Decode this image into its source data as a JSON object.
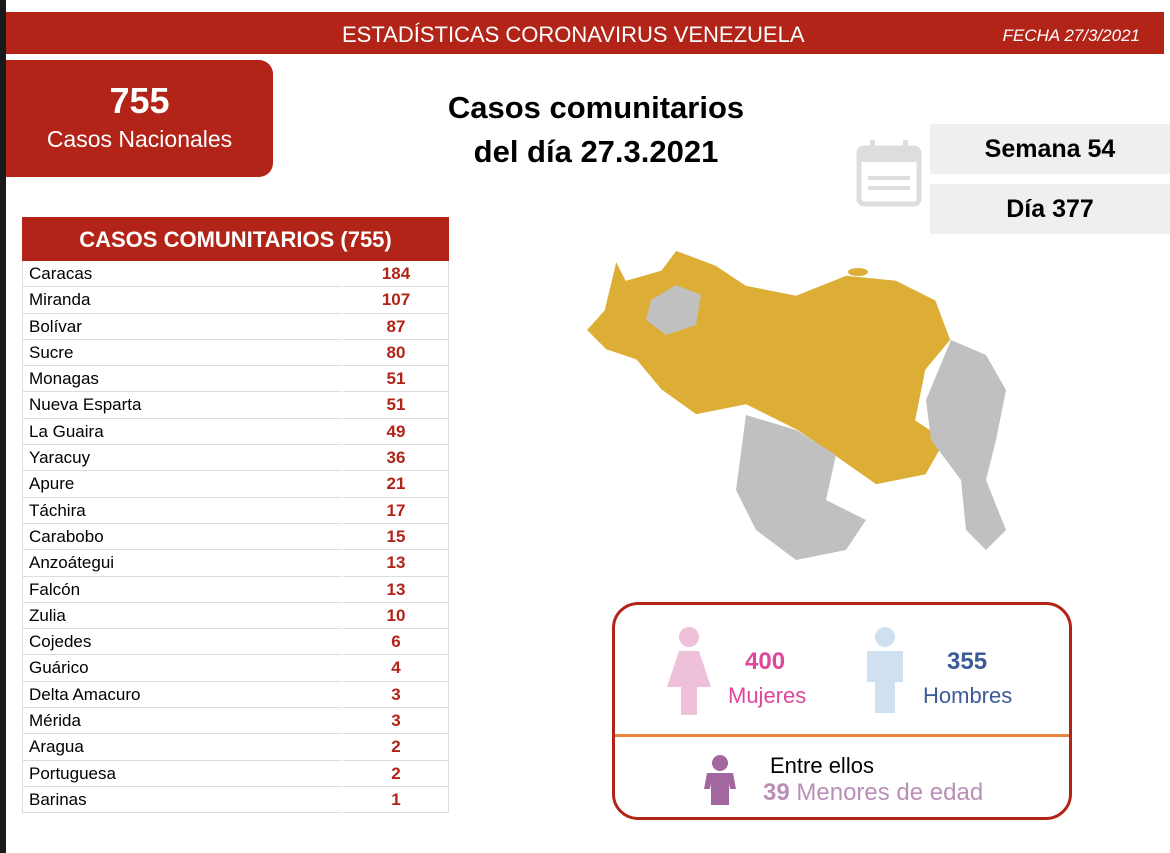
{
  "header": {
    "title": "ESTADÍSTICAS CORONAVIRUS VENEZUELA",
    "fecha": "FECHA 27/3/2021"
  },
  "national": {
    "count": "755",
    "label": "Casos Nacionales"
  },
  "main_title": {
    "line1": "Casos comunitarios",
    "line2": "del día 27.3.2021"
  },
  "semana": "Semana 54",
  "dia": "Día 377",
  "table": {
    "header": "CASOS COMUNITARIOS (755)",
    "rows": [
      [
        "Caracas",
        "184"
      ],
      [
        "Miranda",
        "107"
      ],
      [
        "Bolívar",
        "87"
      ],
      [
        "Sucre",
        "80"
      ],
      [
        "Monagas",
        "51"
      ],
      [
        "Nueva Esparta",
        "51"
      ],
      [
        "La Guaira",
        "49"
      ],
      [
        "Yaracuy",
        "36"
      ],
      [
        "Apure",
        "21"
      ],
      [
        "Táchira",
        "17"
      ],
      [
        "Carabobo",
        "15"
      ],
      [
        "Anzoátegui",
        "13"
      ],
      [
        "Falcón",
        "13"
      ],
      [
        "Zulia",
        "10"
      ],
      [
        "Cojedes",
        "6"
      ],
      [
        "Guárico",
        "4"
      ],
      [
        "Delta Amacuro",
        "3"
      ],
      [
        "Mérida",
        "3"
      ],
      [
        "Aragua",
        "2"
      ],
      [
        "Portuguesa",
        "2"
      ],
      [
        "Barinas",
        "1"
      ]
    ]
  },
  "gender": {
    "women_count": "400",
    "women_label": "Mujeres",
    "men_count": "355",
    "men_label": "Hombres",
    "among": "Entre ellos",
    "minors_count": "39",
    "minors_label": "Menores de edad"
  },
  "colors": {
    "red": "#b22418",
    "map_affected": "#dcae35",
    "map_other": "#c0c0c0",
    "women": "#e0479a",
    "men": "#3d5a99",
    "minors": "#a2679f"
  }
}
